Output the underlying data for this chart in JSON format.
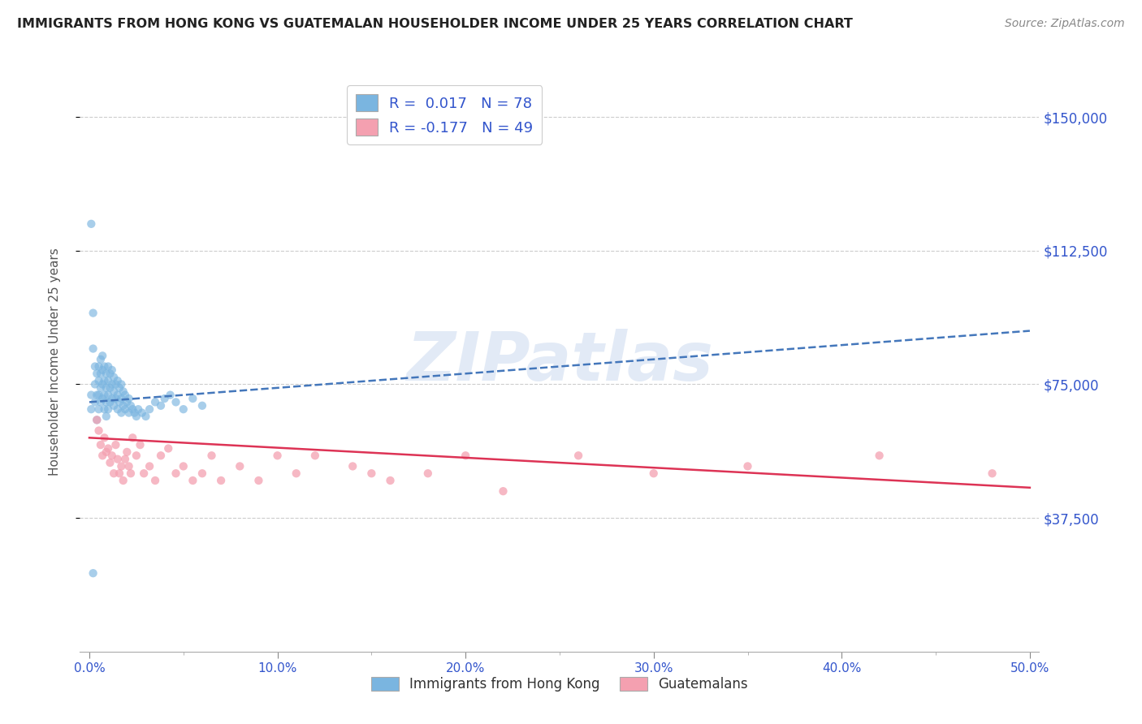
{
  "title": "IMMIGRANTS FROM HONG KONG VS GUATEMALAN HOUSEHOLDER INCOME UNDER 25 YEARS CORRELATION CHART",
  "source": "Source: ZipAtlas.com",
  "ylabel": "Householder Income Under 25 years",
  "xlabel_ticks": [
    "0.0%",
    "10.0%",
    "20.0%",
    "30.0%",
    "40.0%",
    "50.0%"
  ],
  "ytick_labels": [
    "$37,500",
    "$75,000",
    "$112,500",
    "$150,000"
  ],
  "ytick_values": [
    37500,
    75000,
    112500,
    150000
  ],
  "ylim": [
    0,
    162500
  ],
  "xlim": [
    -0.005,
    0.505
  ],
  "hk_R": 0.017,
  "hk_N": 78,
  "guat_R": -0.177,
  "guat_N": 49,
  "legend_label1": "Immigrants from Hong Kong",
  "legend_label2": "Guatemalans",
  "color_hk": "#7ab5e0",
  "color_guat": "#f4a0b0",
  "color_line_hk": "#4477bb",
  "color_line_guat": "#dd3355",
  "color_text_blue": "#3355cc",
  "color_title": "#222222",
  "watermark": "ZIPatlas",
  "hk_x": [
    0.001,
    0.001,
    0.002,
    0.002,
    0.003,
    0.003,
    0.003,
    0.004,
    0.004,
    0.004,
    0.005,
    0.005,
    0.005,
    0.005,
    0.006,
    0.006,
    0.006,
    0.006,
    0.007,
    0.007,
    0.007,
    0.007,
    0.008,
    0.008,
    0.008,
    0.008,
    0.009,
    0.009,
    0.009,
    0.009,
    0.01,
    0.01,
    0.01,
    0.01,
    0.011,
    0.011,
    0.011,
    0.012,
    0.012,
    0.012,
    0.013,
    0.013,
    0.013,
    0.014,
    0.014,
    0.015,
    0.015,
    0.015,
    0.016,
    0.016,
    0.017,
    0.017,
    0.017,
    0.018,
    0.018,
    0.019,
    0.019,
    0.02,
    0.021,
    0.021,
    0.022,
    0.023,
    0.024,
    0.025,
    0.026,
    0.028,
    0.03,
    0.032,
    0.035,
    0.038,
    0.04,
    0.043,
    0.046,
    0.05,
    0.055,
    0.06,
    0.001,
    0.002
  ],
  "hk_y": [
    72000,
    68000,
    95000,
    85000,
    80000,
    75000,
    70000,
    78000,
    72000,
    65000,
    80000,
    76000,
    72000,
    68000,
    82000,
    78000,
    74000,
    70000,
    83000,
    79000,
    75000,
    71000,
    80000,
    76000,
    72000,
    68000,
    78000,
    74000,
    70000,
    66000,
    80000,
    76000,
    72000,
    68000,
    78000,
    74000,
    70000,
    79000,
    75000,
    71000,
    77000,
    73000,
    69000,
    75000,
    71000,
    76000,
    72000,
    68000,
    74000,
    70000,
    75000,
    71000,
    67000,
    73000,
    69000,
    72000,
    68000,
    70000,
    71000,
    67000,
    69000,
    68000,
    67000,
    66000,
    68000,
    67000,
    66000,
    68000,
    70000,
    69000,
    71000,
    72000,
    70000,
    68000,
    71000,
    69000,
    120000,
    22000
  ],
  "guat_x": [
    0.004,
    0.005,
    0.006,
    0.007,
    0.008,
    0.009,
    0.01,
    0.011,
    0.012,
    0.013,
    0.014,
    0.015,
    0.016,
    0.017,
    0.018,
    0.019,
    0.02,
    0.021,
    0.022,
    0.023,
    0.025,
    0.027,
    0.029,
    0.032,
    0.035,
    0.038,
    0.042,
    0.046,
    0.05,
    0.055,
    0.06,
    0.065,
    0.07,
    0.08,
    0.09,
    0.1,
    0.11,
    0.12,
    0.14,
    0.15,
    0.16,
    0.18,
    0.2,
    0.22,
    0.26,
    0.3,
    0.35,
    0.42,
    0.48
  ],
  "guat_y": [
    65000,
    62000,
    58000,
    55000,
    60000,
    56000,
    57000,
    53000,
    55000,
    50000,
    58000,
    54000,
    50000,
    52000,
    48000,
    54000,
    56000,
    52000,
    50000,
    60000,
    55000,
    58000,
    50000,
    52000,
    48000,
    55000,
    57000,
    50000,
    52000,
    48000,
    50000,
    55000,
    48000,
    52000,
    48000,
    55000,
    50000,
    55000,
    52000,
    50000,
    48000,
    50000,
    55000,
    45000,
    55000,
    50000,
    52000,
    55000,
    50000
  ]
}
